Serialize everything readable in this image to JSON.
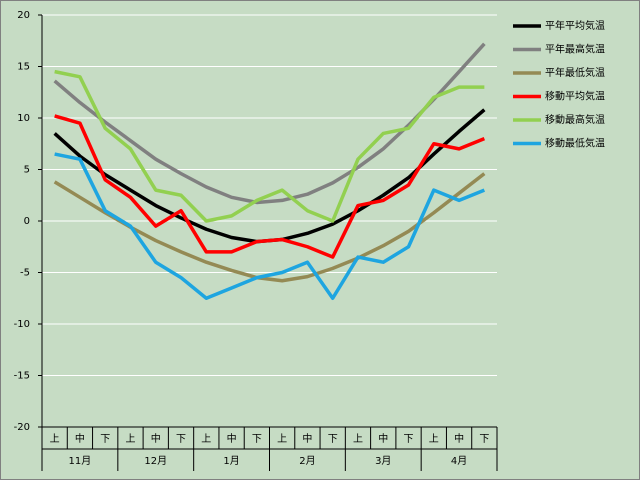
{
  "chart_data": {
    "type": "line",
    "categories": [
      "上",
      "中",
      "下",
      "上",
      "中",
      "下",
      "上",
      "中",
      "下",
      "上",
      "中",
      "下",
      "上",
      "中",
      "下",
      "上",
      "中",
      "下"
    ],
    "months": [
      "11月",
      "12月",
      "1月",
      "2月",
      "3月",
      "4月"
    ],
    "ylim": [
      -20,
      20
    ],
    "yticks": [
      -20,
      -15,
      -10,
      -5,
      0,
      5,
      10,
      15,
      20
    ],
    "grid": true,
    "legend": "right",
    "series": [
      {
        "name": "平年平均気温",
        "color": "#000000",
        "values": [
          8.5,
          6.3,
          4.5,
          3.0,
          1.5,
          0.3,
          -0.8,
          -1.6,
          -2.0,
          -1.8,
          -1.2,
          -0.3,
          1.0,
          2.5,
          4.2,
          6.5,
          8.7,
          10.8
        ]
      },
      {
        "name": "平年最高気温",
        "color": "#808080",
        "values": [
          13.6,
          11.5,
          9.6,
          7.8,
          6.0,
          4.6,
          3.3,
          2.3,
          1.8,
          2.0,
          2.6,
          3.7,
          5.2,
          7.0,
          9.3,
          11.8,
          14.5,
          17.2
        ]
      },
      {
        "name": "平年最低気温",
        "color": "#948a54",
        "values": [
          3.8,
          2.3,
          0.8,
          -0.6,
          -1.9,
          -3.0,
          -4.0,
          -4.8,
          -5.5,
          -5.8,
          -5.4,
          -4.6,
          -3.6,
          -2.4,
          -1.0,
          0.8,
          2.7,
          4.6
        ]
      },
      {
        "name": "移動平均気温",
        "color": "#ff0000",
        "values": [
          10.2,
          9.5,
          4.0,
          2.3,
          -0.5,
          1.0,
          -3.0,
          -3.0,
          -2.0,
          -1.8,
          -2.5,
          -3.5,
          1.5,
          2.0,
          3.5,
          7.5,
          7.0,
          8.0
        ]
      },
      {
        "name": "移動最高気温",
        "color": "#92d050",
        "values": [
          14.5,
          14.0,
          9.0,
          7.0,
          3.0,
          2.5,
          0.0,
          0.5,
          2.0,
          3.0,
          1.0,
          0.0,
          6.0,
          8.5,
          9.0,
          12.0,
          13.0,
          13.0
        ]
      },
      {
        "name": "移動最低気温",
        "color": "#1ea5e0",
        "values": [
          6.5,
          6.0,
          1.0,
          -0.5,
          -4.0,
          -5.5,
          -7.5,
          -6.5,
          -5.5,
          -5.0,
          -4.0,
          -7.5,
          -3.5,
          -4.0,
          -2.5,
          3.0,
          2.0,
          3.0
        ]
      }
    ]
  }
}
